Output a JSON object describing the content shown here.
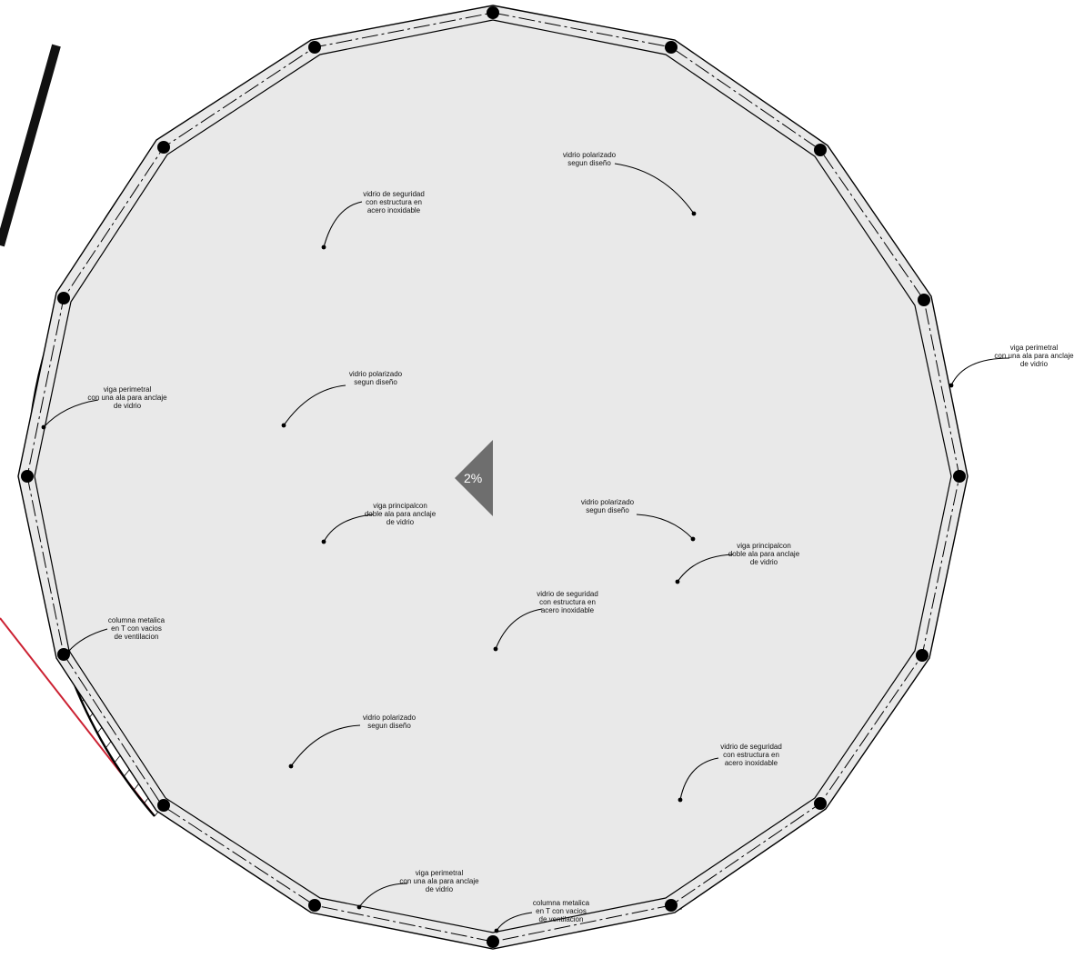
{
  "slope_label": "2%",
  "colors": {
    "glass_light_blue": "#dcebfb",
    "glass_pink": "#e6bde6",
    "glass_green": "#dcfcb8",
    "glass_yellow": "#fefee0",
    "glass_red": "#fcbcbc",
    "beam_fill": "#e9e9e9",
    "line": "#000000",
    "marker_fill": "#6e6e6e",
    "red_line": "#cc2233"
  },
  "annotations": [
    {
      "id": "a1",
      "lines": [
        "vidrio de seguridad",
        "con estructura en",
        "acero inoxidable"
      ]
    },
    {
      "id": "a2",
      "lines": [
        "vidrio polarizado",
        "segun diseño"
      ]
    },
    {
      "id": "a3",
      "lines": [
        "viga perimetral",
        "con una ala para anclaje",
        "de vidrio"
      ]
    },
    {
      "id": "a4",
      "lines": [
        "vidrio polarizado",
        "segun diseño"
      ]
    },
    {
      "id": "a5",
      "lines": [
        "viga perimetral",
        "con una ala para anclaje",
        "de vidrio"
      ]
    },
    {
      "id": "a6",
      "lines": [
        "viga principalcon",
        "doble ala para anclaje",
        "de vidrio"
      ]
    },
    {
      "id": "a7",
      "lines": [
        "vidrio polarizado",
        "segun diseño"
      ]
    },
    {
      "id": "a8",
      "lines": [
        "viga principalcon",
        "doble ala para anclaje",
        "de vidrio"
      ]
    },
    {
      "id": "a9",
      "lines": [
        "vidrio de seguridad",
        "con estructura en",
        "acero inoxidable"
      ]
    },
    {
      "id": "a10",
      "lines": [
        "columna metalica",
        "en T con vacios",
        "de ventilacion"
      ]
    },
    {
      "id": "a11",
      "lines": [
        "vidrio polarizado",
        "segun diseño"
      ]
    },
    {
      "id": "a12",
      "lines": [
        "vidrio de seguridad",
        "con estructura en",
        "acero inoxidable"
      ]
    },
    {
      "id": "a13",
      "lines": [
        "viga perimetral",
        "con una ala para anclaje",
        "de vidrio"
      ]
    },
    {
      "id": "a14",
      "lines": [
        "columna metalica",
        "en T con vacios",
        "de ventilacion"
      ]
    }
  ]
}
